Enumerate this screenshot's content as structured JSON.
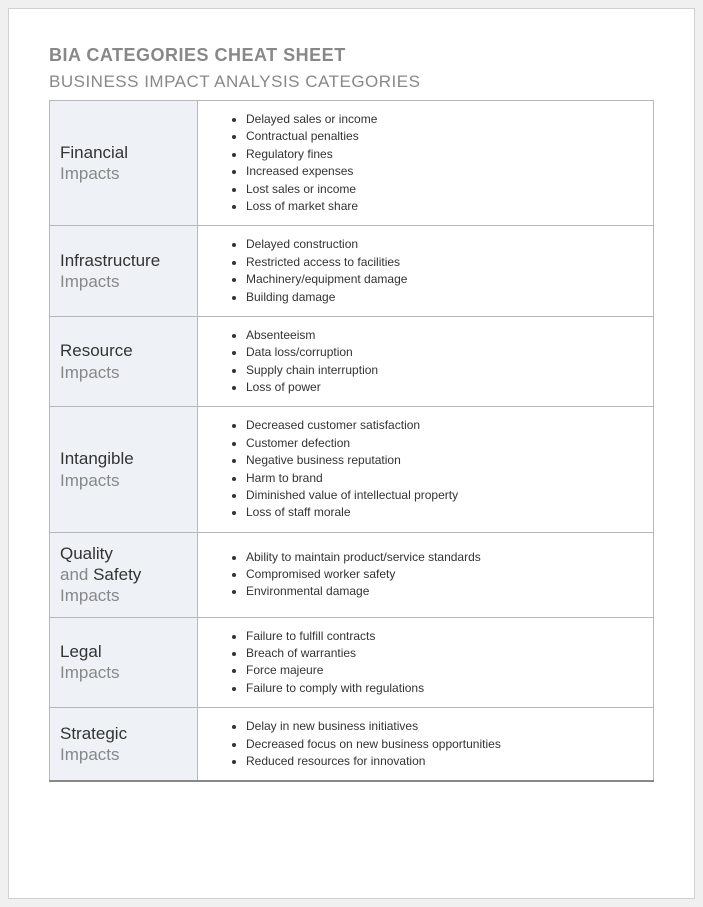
{
  "title_main": "BIA CATEGORIES CHEAT SHEET",
  "title_sub": "BUSINESS IMPACT ANALYSIS CATEGORIES",
  "colors": {
    "page_bg": "#ffffff",
    "outer_bg": "#f0f0f0",
    "label_cell_bg": "#eef1f6",
    "border": "#b8b8b8",
    "title_text": "#888888",
    "muted_text": "#888888",
    "dark_text": "#333333"
  },
  "typography": {
    "title_main_size_pt": 14,
    "title_sub_size_pt": 13,
    "label_size_pt": 13,
    "item_size_pt": 9,
    "font_family": "Century Gothic"
  },
  "categories": [
    {
      "label_parts": [
        {
          "text": "Financial",
          "dark": true
        },
        {
          "text": "Impacts",
          "dark": false
        }
      ],
      "items": [
        "Delayed sales or income",
        "Contractual penalties",
        "Regulatory fines",
        "Increased expenses",
        "Lost sales or income",
        "Loss of market share"
      ]
    },
    {
      "label_parts": [
        {
          "text": "Infrastructure",
          "dark": true
        },
        {
          "text": "Impacts",
          "dark": false
        }
      ],
      "items": [
        "Delayed construction",
        "Restricted access to facilities",
        "Machinery/equipment damage",
        "Building damage"
      ]
    },
    {
      "label_parts": [
        {
          "text": "Resource",
          "dark": true
        },
        {
          "text": "Impacts",
          "dark": false
        }
      ],
      "items": [
        "Absenteeism",
        "Data loss/corruption",
        "Supply chain interruption",
        "Loss of power"
      ]
    },
    {
      "label_parts": [
        {
          "text": "Intangible",
          "dark": true
        },
        {
          "text": "Impacts",
          "dark": false
        }
      ],
      "items": [
        "Decreased customer satisfaction",
        "Customer defection",
        "Negative business reputation",
        "Harm to brand",
        "Diminished value of intellectual property",
        "Loss of staff morale"
      ]
    },
    {
      "label_parts": [
        {
          "text": "Quality",
          "dark": true
        },
        {
          "text": "and ",
          "dark": false,
          "inline_next": true
        },
        {
          "text": "Safety",
          "dark": true
        },
        {
          "text": "Impacts",
          "dark": false
        }
      ],
      "items": [
        "Ability to maintain product/service standards",
        "Compromised worker safety",
        "Environmental damage"
      ]
    },
    {
      "label_parts": [
        {
          "text": "Legal",
          "dark": true
        },
        {
          "text": "Impacts",
          "dark": false
        }
      ],
      "items": [
        "Failure to fulfill contracts",
        "Breach of warranties",
        "Force majeure",
        "Failure to comply with regulations"
      ]
    },
    {
      "label_parts": [
        {
          "text": "Strategic",
          "dark": true
        },
        {
          "text": "Impacts",
          "dark": false
        }
      ],
      "items": [
        "Delay in new business initiatives",
        "Decreased focus on new business opportunities",
        "Reduced resources for innovation"
      ]
    }
  ]
}
